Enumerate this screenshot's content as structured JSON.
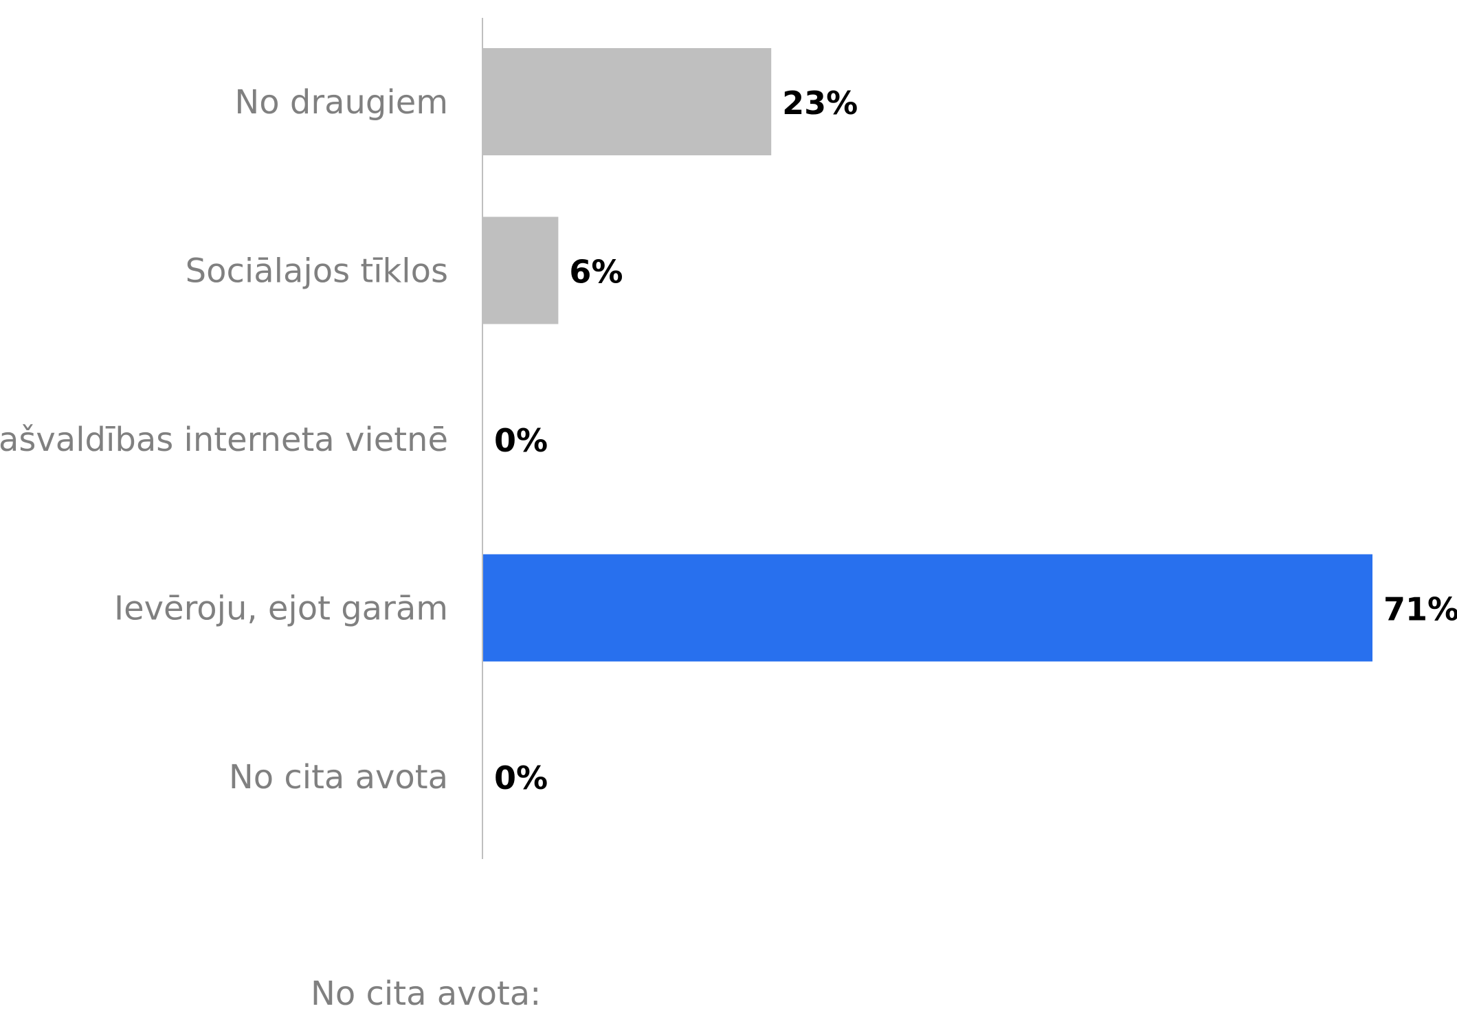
{
  "chart_data": {
    "type": "bar",
    "orientation": "horizontal",
    "categories": [
      "No draugiem",
      "Sociālajos tīklos",
      "Pašvaldības interneta vietnē",
      "Ievēroju, ejot garām",
      "No cita avota"
    ],
    "values": [
      23,
      6,
      0,
      71,
      0
    ],
    "value_labels": [
      "23%",
      "6%",
      "0%",
      "71%",
      "0%"
    ],
    "unit": "%",
    "xlim": [
      0,
      71
    ],
    "grid": false,
    "legend": "none",
    "colors": {
      "default": "#bfbfbf",
      "highlight": "#2870ee"
    },
    "highlight_index": 3
  },
  "footnote": "No cita avota:"
}
